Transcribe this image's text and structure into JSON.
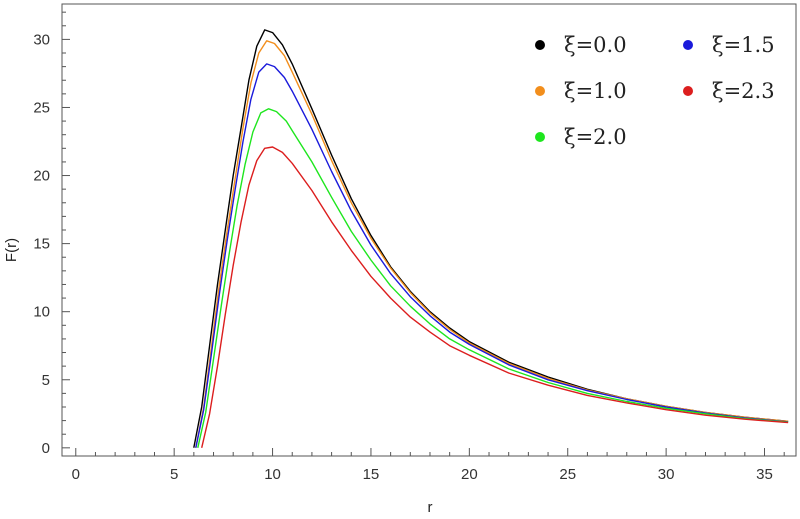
{
  "chart_data": {
    "type": "line",
    "title": "",
    "xlabel": "r",
    "ylabel": "F(r)",
    "xlim": [
      -0.7,
      36.6
    ],
    "ylim": [
      -0.6,
      32.6
    ],
    "x_ticks": [
      0,
      5,
      10,
      15,
      20,
      25,
      30,
      35
    ],
    "y_ticks": [
      0,
      5,
      10,
      15,
      20,
      25,
      30
    ],
    "grid": false,
    "legend_position": "top-right",
    "series": [
      {
        "name": "ξ=0.0",
        "color": "#000000",
        "points": [
          [
            6.0,
            0
          ],
          [
            6.4,
            3
          ],
          [
            6.8,
            7.5
          ],
          [
            7.2,
            12
          ],
          [
            7.6,
            16
          ],
          [
            8.0,
            20
          ],
          [
            8.4,
            23.5
          ],
          [
            8.8,
            27
          ],
          [
            9.2,
            29.5
          ],
          [
            9.6,
            30.7
          ],
          [
            10.0,
            30.5
          ],
          [
            10.5,
            29.6
          ],
          [
            11,
            28.2
          ],
          [
            12,
            24.9
          ],
          [
            13,
            21.5
          ],
          [
            14,
            18.3
          ],
          [
            15,
            15.6
          ],
          [
            16,
            13.3
          ],
          [
            17,
            11.5
          ],
          [
            18,
            10.0
          ],
          [
            19,
            8.8
          ],
          [
            20,
            7.8
          ],
          [
            22,
            6.3
          ],
          [
            24,
            5.2
          ],
          [
            26,
            4.3
          ],
          [
            28,
            3.6
          ],
          [
            30,
            3.05
          ],
          [
            32,
            2.6
          ],
          [
            34,
            2.25
          ],
          [
            36.2,
            1.95
          ]
        ]
      },
      {
        "name": "ξ=1.0",
        "color": "#f28e1c",
        "points": [
          [
            6.1,
            0
          ],
          [
            6.5,
            3
          ],
          [
            6.9,
            7.5
          ],
          [
            7.3,
            12
          ],
          [
            7.7,
            16
          ],
          [
            8.1,
            19.8
          ],
          [
            8.5,
            23.5
          ],
          [
            8.9,
            26.8
          ],
          [
            9.3,
            29
          ],
          [
            9.7,
            29.9
          ],
          [
            10.1,
            29.7
          ],
          [
            10.6,
            28.8
          ],
          [
            11,
            27.6
          ],
          [
            12,
            24.5
          ],
          [
            13,
            21.1
          ],
          [
            14,
            18.0
          ],
          [
            15,
            15.4
          ],
          [
            16,
            13.2
          ],
          [
            17,
            11.4
          ],
          [
            18,
            9.9
          ],
          [
            19,
            8.7
          ],
          [
            20,
            7.7
          ],
          [
            22,
            6.2
          ],
          [
            24,
            5.1
          ],
          [
            26,
            4.25
          ],
          [
            28,
            3.6
          ],
          [
            30,
            3.05
          ],
          [
            32,
            2.6
          ],
          [
            34,
            2.25
          ],
          [
            36.2,
            1.95
          ]
        ]
      },
      {
        "name": "ξ=1.5",
        "color": "#1a1adb",
        "points": [
          [
            6.1,
            0
          ],
          [
            6.5,
            2.8
          ],
          [
            6.9,
            7
          ],
          [
            7.3,
            11.3
          ],
          [
            7.7,
            15.3
          ],
          [
            8.1,
            19
          ],
          [
            8.5,
            22.5
          ],
          [
            8.9,
            25.6
          ],
          [
            9.3,
            27.6
          ],
          [
            9.7,
            28.2
          ],
          [
            10.1,
            28.0
          ],
          [
            10.6,
            27.2
          ],
          [
            11,
            26.2
          ],
          [
            12,
            23.4
          ],
          [
            13,
            20.3
          ],
          [
            14,
            17.4
          ],
          [
            15,
            14.9
          ],
          [
            16,
            12.8
          ],
          [
            17,
            11.1
          ],
          [
            18,
            9.7
          ],
          [
            19,
            8.5
          ],
          [
            20,
            7.6
          ],
          [
            22,
            6.1
          ],
          [
            24,
            5.0
          ],
          [
            26,
            4.2
          ],
          [
            28,
            3.55
          ],
          [
            30,
            3.0
          ],
          [
            32,
            2.55
          ],
          [
            34,
            2.2
          ],
          [
            36.2,
            1.9
          ]
        ]
      },
      {
        "name": "ξ=2.0",
        "color": "#1ee61e",
        "points": [
          [
            6.2,
            0
          ],
          [
            6.6,
            2.6
          ],
          [
            7.0,
            6.5
          ],
          [
            7.4,
            10.5
          ],
          [
            7.8,
            14.3
          ],
          [
            8.2,
            17.8
          ],
          [
            8.6,
            20.8
          ],
          [
            9.0,
            23.2
          ],
          [
            9.4,
            24.6
          ],
          [
            9.8,
            24.9
          ],
          [
            10.2,
            24.7
          ],
          [
            10.7,
            24.0
          ],
          [
            11,
            23.3
          ],
          [
            12,
            21.0
          ],
          [
            13,
            18.4
          ],
          [
            14,
            15.9
          ],
          [
            15,
            13.8
          ],
          [
            16,
            11.9
          ],
          [
            17,
            10.4
          ],
          [
            18,
            9.1
          ],
          [
            19,
            8.0
          ],
          [
            20,
            7.2
          ],
          [
            22,
            5.8
          ],
          [
            24,
            4.8
          ],
          [
            26,
            4.0
          ],
          [
            28,
            3.4
          ],
          [
            30,
            2.9
          ],
          [
            32,
            2.5
          ],
          [
            34,
            2.15
          ],
          [
            36.2,
            1.88
          ]
        ]
      },
      {
        "name": "ξ=2.3",
        "color": "#dc1e1e",
        "points": [
          [
            6.4,
            0
          ],
          [
            6.8,
            2.5
          ],
          [
            7.2,
            6
          ],
          [
            7.6,
            9.8
          ],
          [
            8.0,
            13.4
          ],
          [
            8.4,
            16.6
          ],
          [
            8.8,
            19.3
          ],
          [
            9.2,
            21.1
          ],
          [
            9.6,
            22.0
          ],
          [
            10.0,
            22.1
          ],
          [
            10.5,
            21.7
          ],
          [
            11,
            20.9
          ],
          [
            12,
            18.9
          ],
          [
            13,
            16.6
          ],
          [
            14,
            14.5
          ],
          [
            15,
            12.6
          ],
          [
            16,
            11.0
          ],
          [
            17,
            9.6
          ],
          [
            18,
            8.5
          ],
          [
            19,
            7.5
          ],
          [
            20,
            6.8
          ],
          [
            22,
            5.5
          ],
          [
            24,
            4.6
          ],
          [
            26,
            3.85
          ],
          [
            28,
            3.3
          ],
          [
            30,
            2.8
          ],
          [
            32,
            2.4
          ],
          [
            34,
            2.1
          ],
          [
            36.2,
            1.85
          ]
        ]
      }
    ]
  }
}
